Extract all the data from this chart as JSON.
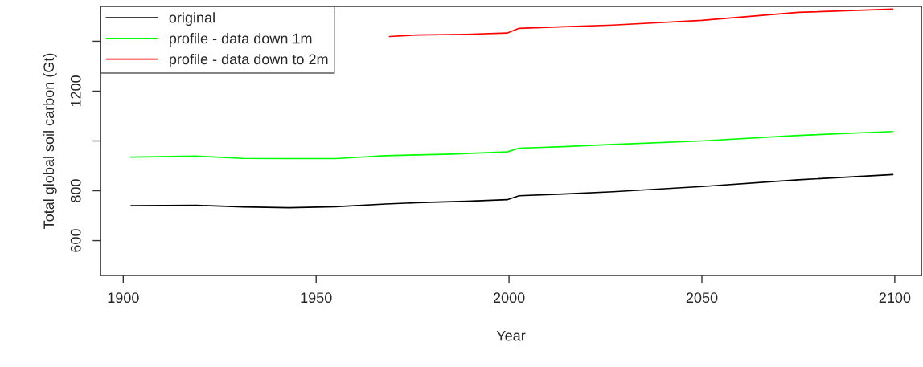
{
  "chart_data": {
    "type": "line",
    "xlabel": "Year",
    "ylabel": "Total global soil carbon (Gt)",
    "xlim": [
      1894.1,
      2106.9
    ],
    "ylim": [
      460,
      1540
    ],
    "xticks": [
      1900,
      1950,
      2000,
      2050,
      2100
    ],
    "yticks": [
      600,
      800,
      {
        "value": 1000,
        "label": null
      },
      1200,
      {
        "value": 1400,
        "label": null
      }
    ],
    "grid": false,
    "legend": "top left",
    "marker": "none",
    "line_style": "solid",
    "series": [
      {
        "name": "original",
        "color": "#000000",
        "x": [
          1902,
          1919,
          1931,
          1943,
          1955,
          1968,
          1976,
          1989,
          1999.5,
          2002.6,
          2014,
          2027,
          2050,
          2075,
          2099.5
        ],
        "values": [
          740,
          742,
          735,
          732,
          736,
          747,
          752,
          758,
          764,
          780,
          787,
          796,
          817,
          844,
          865
        ]
      },
      {
        "name": "profile - data down 1m",
        "color": "#00ff00",
        "x": [
          1902,
          1919,
          1931,
          1943,
          1955,
          1968,
          1985,
          1999.5,
          2002.6,
          2014,
          2027,
          2050,
          2075,
          2099.5
        ],
        "values": [
          935,
          939,
          930,
          929,
          929,
          941,
          947,
          956,
          971,
          977,
          986,
          1000,
          1022,
          1038
        ]
      },
      {
        "name": "profile - data down to 2m",
        "color": "#ff0000",
        "x": [
          1969,
          1976,
          1989,
          1999.5,
          2002.6,
          2014,
          2027,
          2050,
          2075,
          2099.5
        ],
        "values": [
          1419,
          1425,
          1428,
          1433,
          1452,
          1458,
          1465,
          1484,
          1516,
          1529
        ]
      }
    ]
  }
}
